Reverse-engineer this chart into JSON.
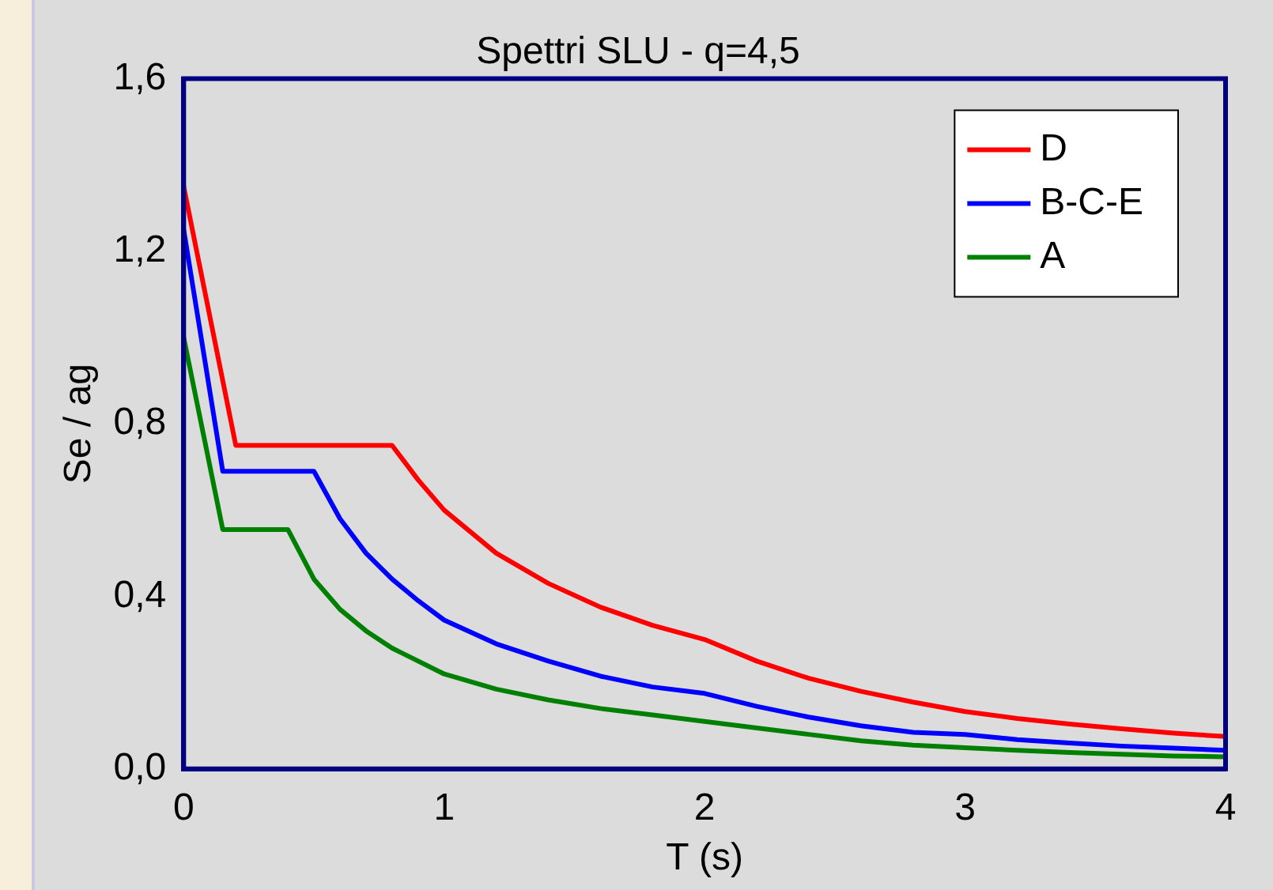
{
  "chart_data": {
    "type": "line",
    "title": "Spettri SLU - q=4,5",
    "xlabel": "T (s)",
    "ylabel": "Se / ag",
    "xlim": [
      0,
      4
    ],
    "xticks": [
      0,
      1,
      2,
      3,
      4
    ],
    "ylim": [
      0,
      1.6
    ],
    "yticks": [
      {
        "value": 0,
        "label": "0,0"
      },
      {
        "value": 0.4,
        "label": "0,4"
      },
      {
        "value": 0.8,
        "label": "0,8"
      },
      {
        "value": 1.2,
        "label": "1,2"
      },
      {
        "value": 1.6,
        "label": "1,6"
      }
    ],
    "grid": false,
    "legend": "top right",
    "marker": "none",
    "line_style": "solid",
    "series": [
      {
        "name": "D",
        "color": "#ff0000",
        "x": [
          0,
          0.2,
          0.8,
          0.9,
          1,
          1.2,
          1.4,
          1.6,
          1.8,
          2,
          2.2,
          2.4,
          2.6,
          2.8,
          3,
          3.2,
          3.4,
          3.6,
          3.8,
          4
        ],
        "values": [
          1.35,
          0.75,
          0.75,
          0.67,
          0.6,
          0.5,
          0.43,
          0.375,
          0.333,
          0.3,
          0.25,
          0.21,
          0.18,
          0.155,
          0.133,
          0.117,
          0.104,
          0.093,
          0.083,
          0.075
        ]
      },
      {
        "name": "B-C-E",
        "color": "#0000ff",
        "x": [
          0,
          0.15,
          0.5,
          0.6,
          0.7,
          0.8,
          0.9,
          1,
          1.2,
          1.4,
          1.6,
          1.8,
          2,
          2.2,
          2.4,
          2.6,
          2.8,
          3,
          3.2,
          3.4,
          3.6,
          3.8,
          4
        ],
        "values": [
          1.25,
          0.69,
          0.69,
          0.58,
          0.5,
          0.44,
          0.39,
          0.345,
          0.29,
          0.25,
          0.215,
          0.19,
          0.175,
          0.145,
          0.12,
          0.1,
          0.085,
          0.08,
          0.068,
          0.06,
          0.053,
          0.048,
          0.043
        ]
      },
      {
        "name": "A",
        "color": "#008000",
        "x": [
          0,
          0.15,
          0.4,
          0.5,
          0.6,
          0.7,
          0.8,
          1,
          1.2,
          1.4,
          1.6,
          1.8,
          2,
          2.2,
          2.4,
          2.6,
          2.8,
          3,
          3.2,
          3.4,
          3.6,
          3.8,
          4
        ],
        "values": [
          1.0,
          0.555,
          0.555,
          0.44,
          0.37,
          0.32,
          0.28,
          0.22,
          0.185,
          0.16,
          0.14,
          0.125,
          0.11,
          0.095,
          0.08,
          0.065,
          0.055,
          0.049,
          0.043,
          0.038,
          0.034,
          0.03,
          0.028
        ]
      }
    ]
  }
}
